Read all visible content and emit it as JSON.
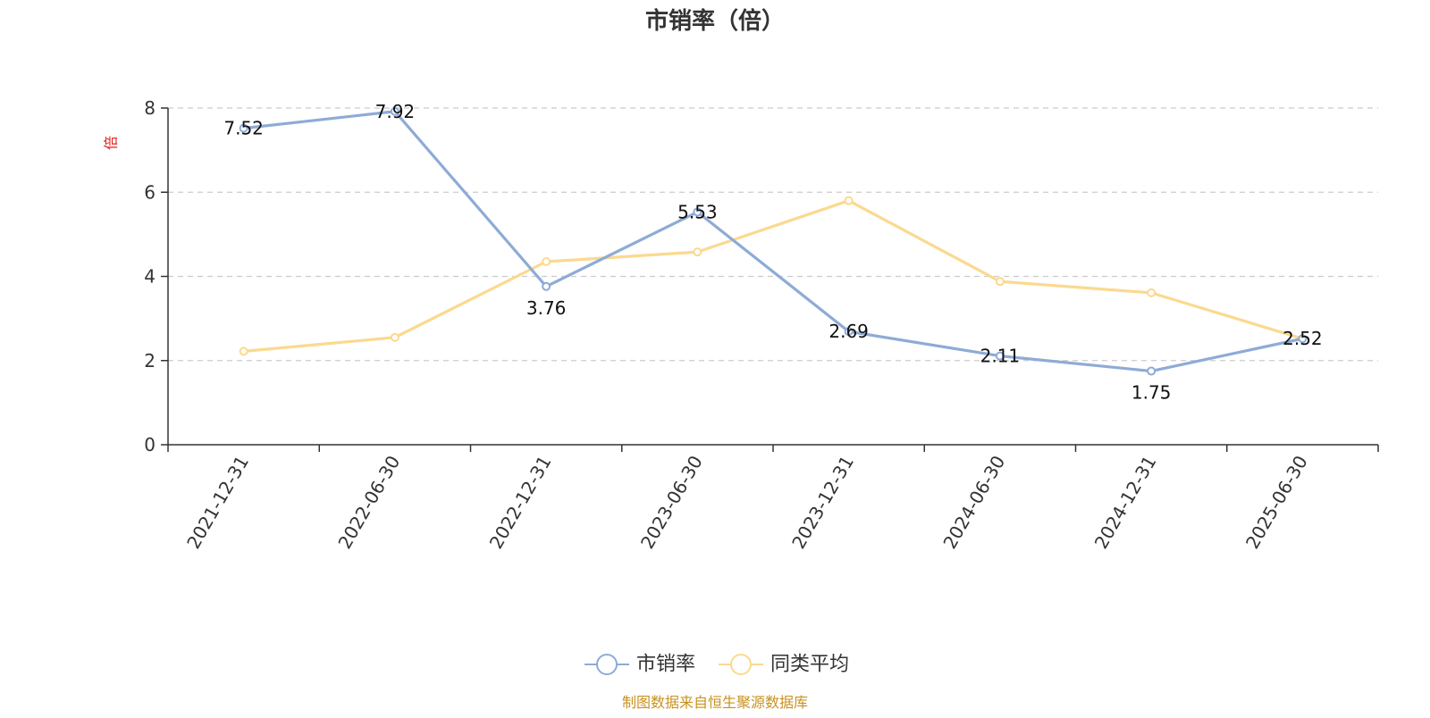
{
  "chart_data": {
    "type": "line",
    "title": "市销率（倍）",
    "ylabel": "倍",
    "xlabel": "",
    "categories": [
      "2021-12-31",
      "2022-06-30",
      "2022-12-31",
      "2023-06-30",
      "2023-12-31",
      "2024-06-30",
      "2024-12-31",
      "2025-06-30"
    ],
    "ylim": [
      0,
      8
    ],
    "yticks": [
      0,
      2,
      4,
      6,
      8
    ],
    "grid": true,
    "legend_position": "bottom-center",
    "series": [
      {
        "name": "市销率",
        "values": [
          7.52,
          7.92,
          3.76,
          5.53,
          2.69,
          2.11,
          1.75,
          2.52
        ],
        "color": "#8eabd6",
        "show_labels": true
      },
      {
        "name": "同类平均",
        "values": [
          2.22,
          2.55,
          4.35,
          4.58,
          5.8,
          3.88,
          3.61,
          2.52
        ],
        "color": "#fbd98e",
        "show_labels": false
      }
    ]
  },
  "source": "制图数据来自恒生聚源数据库"
}
